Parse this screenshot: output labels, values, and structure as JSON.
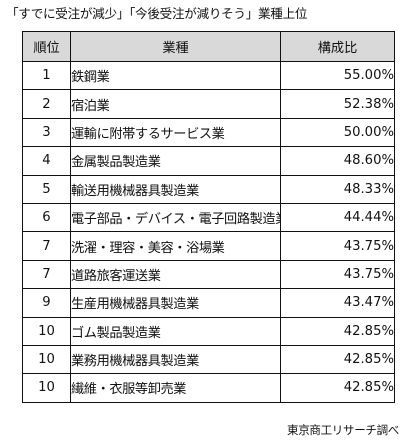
{
  "title": "「すでに受注が減少」「今後受注が減りそう」業種上位",
  "source": "東京商工リサーチ調べ",
  "chart_data": {
    "type": "table",
    "title": "「すでに受注が減少」「今後受注が減りそう」業種上位",
    "columns": [
      "順位",
      "業種",
      "構成比"
    ],
    "rows": [
      {
        "rank": "1",
        "industry": "鉄鋼業",
        "ratio": "55.00%"
      },
      {
        "rank": "2",
        "industry": "宿泊業",
        "ratio": "52.38%"
      },
      {
        "rank": "3",
        "industry": "運輸に附帯するサービス業",
        "ratio": "50.00%"
      },
      {
        "rank": "4",
        "industry": "金属製品製造業",
        "ratio": "48.60%"
      },
      {
        "rank": "5",
        "industry": "輸送用機械器具製造業",
        "ratio": "48.33%"
      },
      {
        "rank": "6",
        "industry": "電子部品・デバイス・電子回路製造業",
        "ratio": "44.44%"
      },
      {
        "rank": "7",
        "industry": "洗濯・理容・美容・浴場業",
        "ratio": "43.75%"
      },
      {
        "rank": "7",
        "industry": "道路旅客運送業",
        "ratio": "43.75%"
      },
      {
        "rank": "9",
        "industry": "生産用機械器具製造業",
        "ratio": "43.47%"
      },
      {
        "rank": "10",
        "industry": "ゴム製品製造業",
        "ratio": "42.85%"
      },
      {
        "rank": "10",
        "industry": "業務用機械器具製造業",
        "ratio": "42.85%"
      },
      {
        "rank": "10",
        "industry": "繊維・衣服等卸売業",
        "ratio": "42.85%"
      }
    ]
  }
}
